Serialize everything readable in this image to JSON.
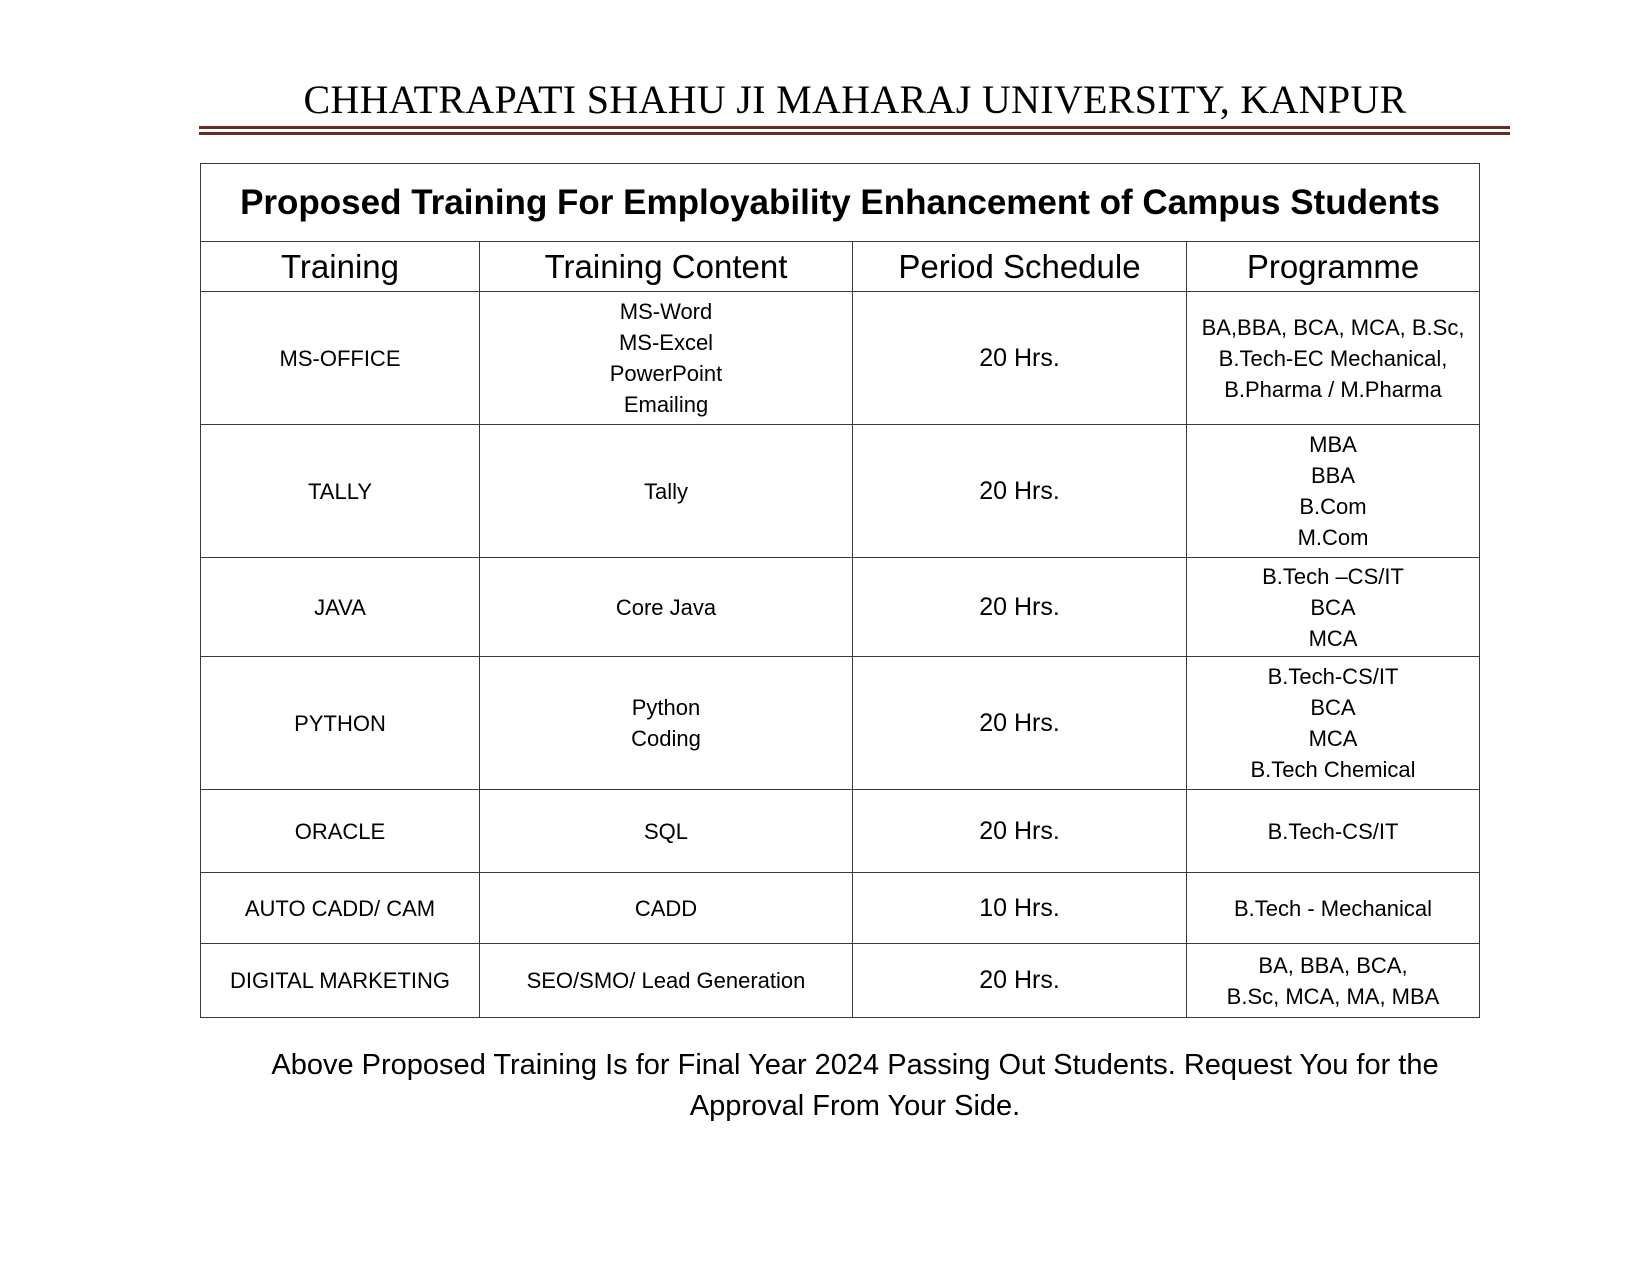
{
  "university": "CHHATRAPATI SHAHU JI MAHARAJ UNIVERSITY, KANPUR",
  "table": {
    "title": "Proposed Training For Employability Enhancement of Campus Students",
    "headers": [
      "Training",
      "Training Content",
      "Period Schedule",
      "Programme"
    ],
    "rows": [
      {
        "training": "MS-OFFICE",
        "content": [
          "MS-Word",
          "MS-Excel",
          "PowerPoint",
          "Emailing"
        ],
        "period": "20 Hrs.",
        "programme": [
          "BA,BBA, BCA, MCA, B.Sc,",
          "B.Tech-EC Mechanical,",
          "B.Pharma / M.Pharma"
        ]
      },
      {
        "training": "TALLY",
        "content": [
          "Tally"
        ],
        "period": "20 Hrs.",
        "programme": [
          "MBA",
          "BBA",
          "B.Com",
          "M.Com"
        ]
      },
      {
        "training": "JAVA",
        "content": [
          "Core Java"
        ],
        "period": "20 Hrs.",
        "programme": [
          "B.Tech –CS/IT",
          "BCA",
          "MCA"
        ]
      },
      {
        "training": "PYTHON",
        "content": [
          "Python",
          "Coding"
        ],
        "period": "20 Hrs.",
        "programme": [
          "B.Tech-CS/IT",
          "BCA",
          "MCA",
          "B.Tech Chemical"
        ]
      },
      {
        "training": "ORACLE",
        "content": [
          "SQL"
        ],
        "period": "20 Hrs.",
        "programme": [
          "B.Tech-CS/IT"
        ]
      },
      {
        "training": "AUTO CADD/ CAM",
        "content": [
          "CADD"
        ],
        "period": "10 Hrs.",
        "programme": [
          "B.Tech - Mechanical"
        ]
      },
      {
        "training": "DIGITAL MARKETING",
        "content": [
          "SEO/SMO/ Lead Generation"
        ],
        "period": "20 Hrs.",
        "programme": [
          "BA, BBA, BCA,",
          "B.Sc, MCA, MA, MBA"
        ]
      }
    ]
  },
  "footer": {
    "line1": "Above Proposed Training Is for Final Year 2024 Passing Out Students. Request You for the",
    "line2": "Approval From Your Side."
  }
}
